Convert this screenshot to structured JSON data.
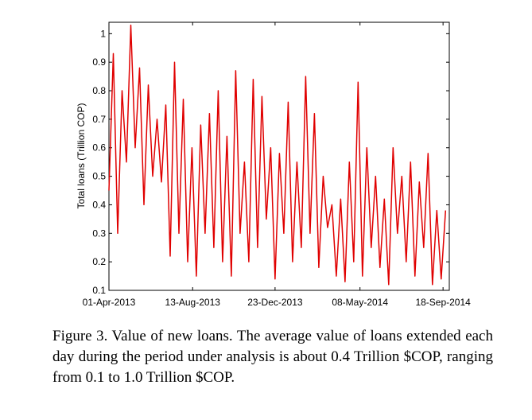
{
  "chart_data": {
    "type": "line",
    "y_label": "Total loans (Trillion COP)",
    "caption": "Figure 3. Value of new loans. The average value of loans extended each day during the period under analysis is about 0.4 Trillion $COP, ranging from 0.1 to 1.0 Trillion $COP.",
    "color": "#e00000",
    "x": [
      "2013-04-01",
      "2013-04-08",
      "2013-04-15",
      "2013-04-22",
      "2013-04-29",
      "2013-05-06",
      "2013-05-13",
      "2013-05-20",
      "2013-05-27",
      "2013-06-03",
      "2013-06-10",
      "2013-06-17",
      "2013-06-24",
      "2013-07-01",
      "2013-07-08",
      "2013-07-15",
      "2013-07-22",
      "2013-07-29",
      "2013-08-05",
      "2013-08-12",
      "2013-08-19",
      "2013-08-26",
      "2013-09-02",
      "2013-09-09",
      "2013-09-16",
      "2013-09-23",
      "2013-09-30",
      "2013-10-07",
      "2013-10-14",
      "2013-10-21",
      "2013-10-28",
      "2013-11-04",
      "2013-11-11",
      "2013-11-18",
      "2013-11-25",
      "2013-12-02",
      "2013-12-09",
      "2013-12-16",
      "2013-12-23",
      "2013-12-30",
      "2014-01-06",
      "2014-01-13",
      "2014-01-20",
      "2014-01-27",
      "2014-02-03",
      "2014-02-10",
      "2014-02-17",
      "2014-02-24",
      "2014-03-03",
      "2014-03-10",
      "2014-03-17",
      "2014-03-24",
      "2014-03-31",
      "2014-04-07",
      "2014-04-14",
      "2014-04-21",
      "2014-04-28",
      "2014-05-05",
      "2014-05-12",
      "2014-05-19",
      "2014-05-26",
      "2014-06-02",
      "2014-06-09",
      "2014-06-16",
      "2014-06-23",
      "2014-06-30",
      "2014-07-07",
      "2014-07-14",
      "2014-07-21",
      "2014-07-28",
      "2014-08-04",
      "2014-08-11",
      "2014-08-18",
      "2014-08-25",
      "2014-09-01",
      "2014-09-08",
      "2014-09-15",
      "2014-09-22"
    ],
    "values": [
      0.45,
      0.93,
      0.3,
      0.8,
      0.55,
      1.03,
      0.6,
      0.88,
      0.4,
      0.82,
      0.5,
      0.7,
      0.48,
      0.75,
      0.22,
      0.9,
      0.3,
      0.77,
      0.2,
      0.6,
      0.15,
      0.68,
      0.3,
      0.72,
      0.25,
      0.8,
      0.2,
      0.64,
      0.15,
      0.87,
      0.3,
      0.55,
      0.2,
      0.84,
      0.25,
      0.78,
      0.35,
      0.6,
      0.14,
      0.58,
      0.3,
      0.76,
      0.2,
      0.55,
      0.25,
      0.85,
      0.3,
      0.72,
      0.18,
      0.5,
      0.32,
      0.4,
      0.15,
      0.42,
      0.13,
      0.55,
      0.2,
      0.83,
      0.15,
      0.6,
      0.25,
      0.5,
      0.18,
      0.42,
      0.12,
      0.6,
      0.3,
      0.5,
      0.2,
      0.55,
      0.15,
      0.48,
      0.25,
      0.58,
      0.12,
      0.38,
      0.14,
      0.38
    ],
    "xlim": [
      "2013-04-01",
      "2014-09-28"
    ],
    "xticks": [
      {
        "value": "2013-04-01",
        "label": "01-Apr-2013"
      },
      {
        "value": "2013-08-13",
        "label": "13-Aug-2013"
      },
      {
        "value": "2013-12-23",
        "label": "23-Dec-2013"
      },
      {
        "value": "2014-05-08",
        "label": "08-May-2014"
      },
      {
        "value": "2014-09-18",
        "label": "18-Sep-2014"
      }
    ],
    "ylim": [
      0.1,
      1.04
    ],
    "yticks": [
      0.1,
      0.2,
      0.3,
      0.4,
      0.5,
      0.6,
      0.7,
      0.8,
      0.9,
      1
    ]
  }
}
